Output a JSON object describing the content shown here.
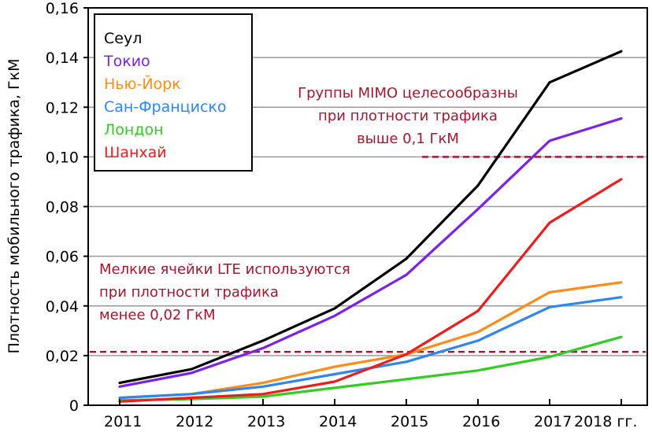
{
  "chart_data": {
    "type": "line",
    "title": "",
    "xlabel": "",
    "ylabel": "Плотность мобильного трафика, ГкМ",
    "x": [
      "2011",
      "2012",
      "2013",
      "2014",
      "2015",
      "2016",
      "2017",
      "2018"
    ],
    "x_tick_labels": [
      "2011",
      "2012",
      "2013",
      "2014",
      "2015",
      "2016",
      "2017",
      "2018 гг."
    ],
    "ylim": [
      0,
      0.16
    ],
    "y_ticks": [
      0,
      0.02,
      0.04,
      0.06,
      0.08,
      0.1,
      0.12,
      0.14,
      0.16
    ],
    "y_tick_labels": [
      "0",
      "0,02",
      "0,04",
      "0,06",
      "0,08",
      "0,10",
      "0,12",
      "0,14",
      "0,16"
    ],
    "grid": true,
    "legend_position": "top-left",
    "series": [
      {
        "name": "Сеул",
        "color": "#000000",
        "values": [
          0.009,
          0.0145,
          0.026,
          0.039,
          0.059,
          0.0885,
          0.13,
          0.1425
        ]
      },
      {
        "name": "Токио",
        "color": "#7b22e6",
        "values": [
          0.0075,
          0.013,
          0.023,
          0.036,
          0.0525,
          0.079,
          0.1065,
          0.1155
        ]
      },
      {
        "name": "Нью-Йорк",
        "color": "#ff8c1a",
        "values": [
          0.003,
          0.0045,
          0.009,
          0.0155,
          0.0205,
          0.0295,
          0.0455,
          0.0495
        ]
      },
      {
        "name": "Сан-Франциско",
        "color": "#2f86f0",
        "values": [
          0.003,
          0.0045,
          0.0075,
          0.0125,
          0.0175,
          0.026,
          0.0395,
          0.0435
        ]
      },
      {
        "name": "Лондон",
        "color": "#33cc22",
        "values": [
          0.002,
          0.0025,
          0.0035,
          0.007,
          0.0105,
          0.014,
          0.0195,
          0.0275
        ]
      },
      {
        "name": "Шанхай",
        "color": "#ee1c1c",
        "values": [
          0.0015,
          0.003,
          0.0045,
          0.0095,
          0.0205,
          0.038,
          0.0735,
          0.091
        ]
      }
    ],
    "thresholds": [
      {
        "value": 0.1,
        "color": "#a3182e",
        "x_start": "2015"
      },
      {
        "value": 0.0215,
        "color": "#a3182e",
        "x_start": "2011"
      }
    ],
    "annotations": [
      {
        "color": "#a3182e",
        "lines": [
          "Группы MIMO целесообразны",
          "при плотности трафика",
          "выше 0,1 ГкМ"
        ]
      },
      {
        "color": "#a3182e",
        "lines": [
          "Мелкие ячейки LTE используются",
          "при плотности трафика",
          "менее 0,02 ГкМ"
        ]
      }
    ]
  }
}
